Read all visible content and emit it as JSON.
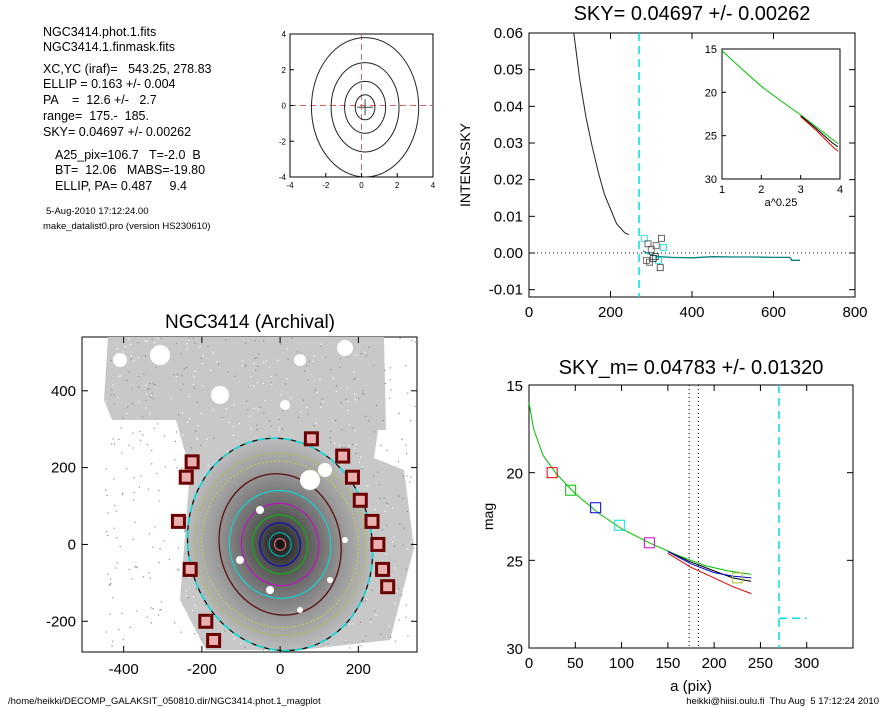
{
  "info": {
    "lines": [
      "NGC3414.phot.1.fits",
      "NGC3414.1.finmask.fits",
      "XC,YC (iraf)=   543.25, 278.83",
      "ELLIP = 0.163 +/- 0.004",
      "PA    =  12.6 +/-   2.7",
      "range=  175.-  185.",
      "SKY= 0.04697 +/- 0.00262"
    ],
    "lines2": [
      "A25_pix=106.7   T=-2.0  B",
      "BT=  12.06   MABS=-19.80",
      "ELLIP, PA= 0.487     9.4"
    ],
    "date": "5-Aug-2010 17:12:24.00",
    "program": "make_datalist0.pro (version HS230610)"
  },
  "footer": {
    "path": "/home/heikki/DECOMP_GALAKSIT_050810.dir/NGC3414.phot.1_magplot",
    "user": "heikki@hiisi.oulu.fi  Thu Aug  5 17:12:24 2010"
  },
  "colors": {
    "cyan": "#00e0e0",
    "red": "#e00000",
    "green": "#00c000",
    "blue": "#0000d0",
    "magenta": "#d000d0",
    "dark_red": "#8b0000",
    "yellow_green": "#b0c020"
  },
  "chart_data": [
    {
      "type": "line",
      "name": "contour-plot",
      "title": "",
      "xlim": [
        -4,
        4
      ],
      "ylim": [
        -4,
        4
      ],
      "xticks": [
        "-4",
        "-2",
        "0",
        "2",
        "4"
      ],
      "yticks": [
        "-4",
        "-2",
        "0",
        "2",
        "4"
      ],
      "contour_radii": [
        {
          "rx": 0.55,
          "ry": 0.7
        },
        {
          "rx": 1.15,
          "ry": 1.45
        },
        {
          "rx": 1.9,
          "ry": 2.5
        },
        {
          "rx": 3.0,
          "ry": 3.9
        }
      ]
    },
    {
      "type": "line",
      "name": "intensity-profile",
      "title": "SKY= 0.04697 +/- 0.00262",
      "ylabel": "INTENS-SKY",
      "xlabel": "",
      "xlim": [
        0,
        800
      ],
      "ylim": [
        -0.012,
        0.06
      ],
      "xticks": [
        "0",
        "200",
        "400",
        "600",
        "800"
      ],
      "yticks": [
        "-0.01",
        "0.00",
        "0.01",
        "0.02",
        "0.03",
        "0.04",
        "0.05",
        "0.06"
      ],
      "sky_line_x": 270,
      "profile": {
        "x": [
          110,
          125,
          140,
          155,
          170,
          185,
          200,
          215,
          235,
          245
        ],
        "y": [
          0.06,
          0.047,
          0.037,
          0.029,
          0.022,
          0.016,
          0.012,
          0.008,
          0.0055,
          0.005
        ]
      },
      "residual": {
        "x": [
          280,
          300,
          320,
          350,
          400,
          450,
          500,
          550,
          600,
          640,
          645,
          665
        ],
        "y": [
          0.0005,
          -0.0005,
          -0.001,
          -0.0012,
          -0.0013,
          -0.001,
          -0.0011,
          -0.0011,
          -0.0012,
          -0.0012,
          -0.002,
          -0.002
        ]
      },
      "squares": {
        "x": [
          283,
          292,
          300,
          310,
          318,
          325,
          288,
          305,
          330,
          296,
          312,
          322
        ],
        "y": [
          0.004,
          0.0025,
          0.001,
          -0.001,
          -0.002,
          0.004,
          -0.002,
          -0.0015,
          0.0015,
          -0.0025,
          0.002,
          -0.004
        ]
      }
    },
    {
      "type": "line",
      "name": "inset-profile",
      "xlabel": "a^0.25",
      "xlim": [
        1,
        4
      ],
      "ylim": [
        15,
        30
      ],
      "xticks": [
        "1",
        "2",
        "3",
        "4"
      ],
      "yticks": [
        "15",
        "20",
        "25",
        "30"
      ],
      "series": [
        {
          "color": "green",
          "x": [
            1.0,
            1.5,
            2.0,
            2.5,
            3.0,
            3.4,
            3.8,
            3.95
          ],
          "y": [
            15.2,
            17.3,
            19.3,
            21.0,
            22.6,
            24.0,
            25.4,
            25.9
          ]
        },
        {
          "color": "black",
          "x": [
            3.0,
            3.4,
            3.8,
            3.95
          ],
          "y": [
            22.7,
            24.2,
            25.8,
            26.3
          ]
        },
        {
          "color": "red",
          "x": [
            3.0,
            3.4,
            3.8,
            3.95
          ],
          "y": [
            22.8,
            24.4,
            26.2,
            26.8
          ]
        }
      ]
    },
    {
      "type": "scatter",
      "name": "galaxy-image",
      "title": "NGC3414 (Archival)",
      "xlim": [
        -550,
        350
      ],
      "ylim": [
        -280,
        540
      ],
      "xticks": [
        "-400",
        "-200",
        "0",
        "200"
      ],
      "yticks": [
        "-200",
        "0",
        "200",
        "400"
      ],
      "outer_ellipse": {
        "rx": 235,
        "ry": 278,
        "rot": -12
      },
      "inner_ellipse": {
        "rx": 155,
        "ry": 185,
        "rot": -12
      },
      "mask_squares": [
        [
          80,
          275
        ],
        [
          160,
          230
        ],
        [
          185,
          175
        ],
        [
          205,
          115
        ],
        [
          235,
          60
        ],
        [
          250,
          0
        ],
        [
          262,
          -65
        ],
        [
          275,
          -110
        ],
        [
          -225,
          215
        ],
        [
          -240,
          175
        ],
        [
          -260,
          60
        ],
        [
          -230,
          -65
        ],
        [
          -190,
          -200
        ],
        [
          -170,
          -250
        ]
      ]
    },
    {
      "type": "line",
      "name": "magnitude-profile",
      "title": "SKY_m=  0.04783 +/- 0.01320",
      "xlabel": "a (pix)",
      "ylabel": "mag",
      "xlim": [
        0,
        350
      ],
      "ylim": [
        15,
        30
      ],
      "xticks": [
        "0",
        "50",
        "100",
        "150",
        "200",
        "250",
        "300"
      ],
      "yticks": [
        "15",
        "20",
        "25",
        "30"
      ],
      "vlines": [
        173,
        183
      ],
      "sky_vline": 270,
      "sky_mark": {
        "x": [
          270,
          300
        ],
        "y": 28.3
      },
      "series": [
        {
          "color": "green",
          "x": [
            0,
            5,
            15,
            30,
            50,
            75,
            100,
            130,
            160,
            190,
            215,
            240
          ],
          "y": [
            16.0,
            17.5,
            19.0,
            20.1,
            21.2,
            22.3,
            23.2,
            24.0,
            24.7,
            25.3,
            25.6,
            25.8
          ]
        },
        {
          "color": "black",
          "x": [
            150,
            175,
            200,
            220,
            240
          ],
          "y": [
            24.5,
            25.1,
            25.6,
            26.0,
            26.2
          ]
        },
        {
          "color": "red",
          "x": [
            150,
            175,
            200,
            220,
            240
          ],
          "y": [
            24.6,
            25.4,
            26.0,
            26.5,
            26.9
          ]
        },
        {
          "color": "blue",
          "x": [
            150,
            175,
            200,
            220,
            240
          ],
          "y": [
            24.5,
            25.2,
            25.7,
            25.9,
            26.0
          ]
        }
      ],
      "markers": [
        {
          "x": 25,
          "y": 20.0,
          "color": "red"
        },
        {
          "x": 45,
          "y": 21.0,
          "color": "green"
        },
        {
          "x": 72,
          "y": 22.0,
          "color": "blue"
        },
        {
          "x": 98,
          "y": 23.0,
          "color": "cyan"
        },
        {
          "x": 130,
          "y": 24.0,
          "color": "magenta"
        },
        {
          "x": 225,
          "y": 26.0,
          "color": "yellow_green"
        }
      ]
    }
  ]
}
